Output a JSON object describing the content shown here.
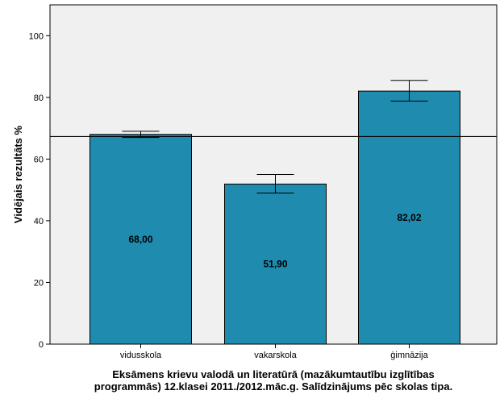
{
  "chart_data": {
    "type": "bar",
    "categories": [
      "vidusskola",
      "vakarskola",
      "ģimnāzija"
    ],
    "values": [
      68.0,
      51.9,
      82.02
    ],
    "value_labels": [
      "68,00",
      "51,90",
      "82,02"
    ],
    "error_bars": [
      {
        "low": 67.0,
        "high": 69.0
      },
      {
        "low": 49.0,
        "high": 55.0
      },
      {
        "low": 78.8,
        "high": 85.5
      }
    ],
    "reference_line": 67.3,
    "ylim": [
      0,
      110
    ],
    "yticks": [
      0,
      20,
      40,
      60,
      80,
      100
    ],
    "ylabel": "Vidējais rezultāts %",
    "xlabel_lines": [
      "Eksāmens krievu valodā un literatūrā (mazākumtautību izglītības",
      "programmās) 12.klasei 2011./2012.māc.g. Salīdzinājums pēc skolas tipa."
    ],
    "grid": false,
    "colors": {
      "bar": "#1F8BAF",
      "plot_background": "#F0F0F0",
      "axis": "#000000"
    }
  }
}
